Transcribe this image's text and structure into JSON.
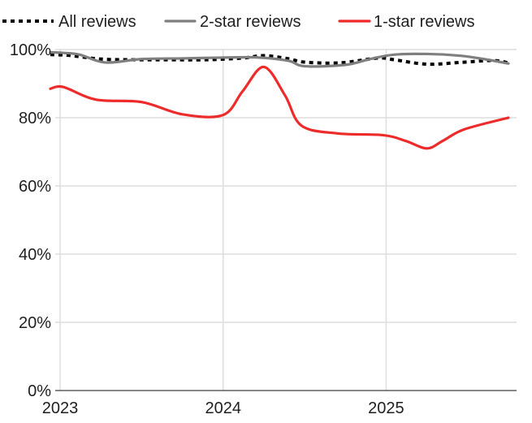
{
  "chart_data": {
    "type": "line",
    "title": "",
    "xlabel": "",
    "ylabel": "",
    "xlim": [
      2022.97,
      2025.8
    ],
    "ylim": [
      0,
      100
    ],
    "x_ticks": [
      2023,
      2024,
      2025
    ],
    "x_tick_labels": [
      "2023",
      "2024",
      "2025"
    ],
    "y_ticks": [
      0,
      20,
      40,
      60,
      80,
      100
    ],
    "y_tick_labels": [
      "0%",
      "20%",
      "40%",
      "60%",
      "80%",
      "100%"
    ],
    "grid": {
      "x": true,
      "y": true
    },
    "legend": {
      "placement": "top"
    },
    "series": [
      {
        "name": "All reviews",
        "color": "#000000",
        "style": "dotted",
        "points": [
          [
            2022.94,
            98.5
          ],
          [
            2023.05,
            98.3
          ],
          [
            2023.25,
            97.2
          ],
          [
            2023.45,
            97.0
          ],
          [
            2023.65,
            97.0
          ],
          [
            2023.9,
            97.0
          ],
          [
            2024.12,
            97.5
          ],
          [
            2024.25,
            98.2
          ],
          [
            2024.4,
            97.3
          ],
          [
            2024.5,
            96.3
          ],
          [
            2024.72,
            96.1
          ],
          [
            2024.95,
            97.5
          ],
          [
            2025.05,
            97.0
          ],
          [
            2025.25,
            95.7
          ],
          [
            2025.45,
            96.2
          ],
          [
            2025.65,
            96.8
          ],
          [
            2025.75,
            96.1
          ]
        ]
      },
      {
        "name": "2-star reviews",
        "color": "#7f7f7f",
        "style": "solid",
        "points": [
          [
            2022.94,
            99.2
          ],
          [
            2023.02,
            99.0
          ],
          [
            2023.12,
            98.5
          ],
          [
            2023.28,
            96.2
          ],
          [
            2023.5,
            97.2
          ],
          [
            2023.75,
            97.4
          ],
          [
            2023.95,
            97.6
          ],
          [
            2024.2,
            97.7
          ],
          [
            2024.4,
            96.7
          ],
          [
            2024.5,
            95.1
          ],
          [
            2024.75,
            95.5
          ],
          [
            2024.9,
            97.2
          ],
          [
            2025.05,
            98.5
          ],
          [
            2025.25,
            98.7
          ],
          [
            2025.45,
            98.2
          ],
          [
            2025.6,
            97.2
          ],
          [
            2025.75,
            95.9
          ]
        ]
      },
      {
        "name": "1-star reviews",
        "color": "#ee2b2b",
        "style": "solid",
        "points": [
          [
            2022.94,
            88.5
          ],
          [
            2023.02,
            89.0
          ],
          [
            2023.22,
            85.3
          ],
          [
            2023.5,
            84.6
          ],
          [
            2023.75,
            81.0
          ],
          [
            2024.0,
            80.8
          ],
          [
            2024.12,
            87.8
          ],
          [
            2024.25,
            94.9
          ],
          [
            2024.38,
            86.5
          ],
          [
            2024.48,
            77.7
          ],
          [
            2024.7,
            75.4
          ],
          [
            2024.98,
            74.9
          ],
          [
            2025.12,
            73.2
          ],
          [
            2025.25,
            71.0
          ],
          [
            2025.35,
            73.3
          ],
          [
            2025.48,
            76.6
          ],
          [
            2025.75,
            80.0
          ]
        ]
      }
    ]
  }
}
